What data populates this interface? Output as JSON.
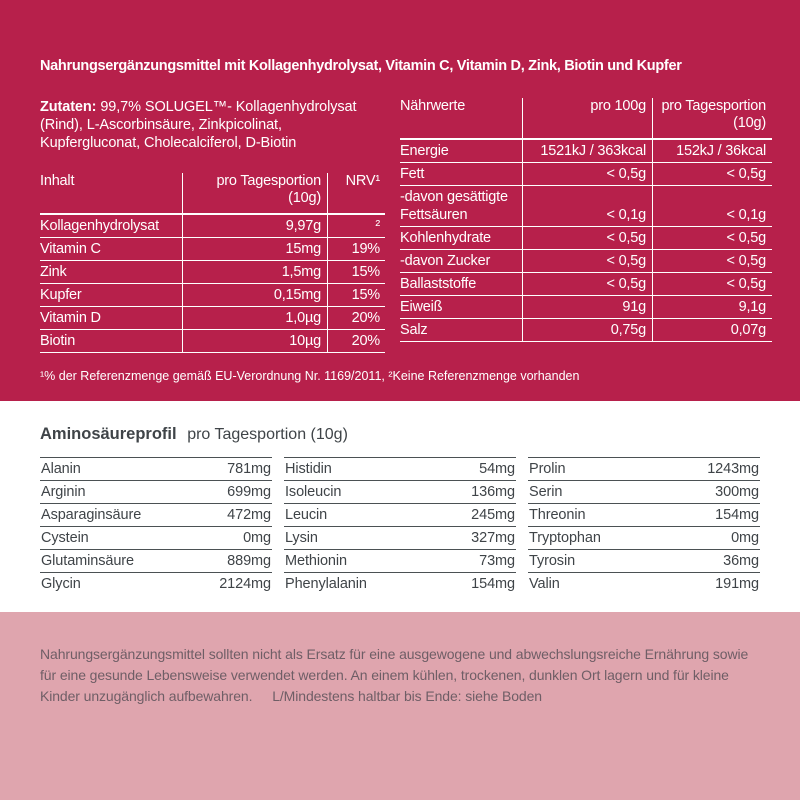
{
  "page": {
    "title": "Nahrungsergänzungsmittel mit Kollagenhydrolysat, Vitamin C, Vitamin D, Zink, Biotin und Kupfer",
    "ingredients_label": "Zutaten:",
    "ingredients_text": "99,7% SOLUGEL™- Kollagenhydro­lysat (Rind), L-Ascorbinsäure, Zinkpicolinat, Kupfergluconat, Cholecalciferol, D-Biotin",
    "content_table": {
      "col_name": "Inhalt",
      "col_portion": "pro Tagesportion\n(10g)",
      "col_nrv": "NRV¹",
      "rows": [
        {
          "name": "Kollagenhydrolysat",
          "amount": "9,97g",
          "nrv": "²"
        },
        {
          "name": "Vitamin C",
          "amount": "15mg",
          "nrv": "19%"
        },
        {
          "name": "Zink",
          "amount": "1,5mg",
          "nrv": "15%"
        },
        {
          "name": "Kupfer",
          "amount": "0,15mg",
          "nrv": "15%"
        },
        {
          "name": "Vitamin D",
          "amount": "1,0µg",
          "nrv": "20%"
        },
        {
          "name": "Biotin",
          "amount": "10µg",
          "nrv": "20%"
        }
      ]
    },
    "nutrition_table": {
      "col_name": "Nährwerte",
      "col_per100": "pro 100g",
      "col_portion": "pro Tagesportion\n(10g)",
      "rows": [
        {
          "name": "Energie",
          "per100": "1521kJ / 363kcal",
          "portion": "152kJ / 36kcal"
        },
        {
          "name": "Fett",
          "per100": "< 0,5g",
          "portion": "< 0,5g"
        },
        {
          "name": "-davon gesättigte Fettsäuren",
          "per100": "< 0,1g",
          "portion": "< 0,1g"
        },
        {
          "name": "Kohlenhydrate",
          "per100": "< 0,5g",
          "portion": "< 0,5g"
        },
        {
          "name": "-davon Zucker",
          "per100": "< 0,5g",
          "portion": "< 0,5g"
        },
        {
          "name": "Ballaststoffe",
          "per100": "< 0,5g",
          "portion": "< 0,5g"
        },
        {
          "name": "Eiweiß",
          "per100": "91g",
          "portion": "9,1g"
        },
        {
          "name": "Salz",
          "per100": "0,75g",
          "portion": "0,07g"
        }
      ]
    },
    "footnote": "¹% der Referenzmenge gemäß EU-Verordnung Nr. 1169/2011, ²Keine Referenzmenge vorhanden",
    "amino": {
      "title": "Aminosäureprofil",
      "subtitle": "pro Tagesportion (10g)",
      "columns": [
        [
          {
            "name": "Alanin",
            "value": "781mg"
          },
          {
            "name": "Arginin",
            "value": "699mg"
          },
          {
            "name": "Asparaginsäure",
            "value": "472mg"
          },
          {
            "name": "Cystein",
            "value": "0mg"
          },
          {
            "name": "Glutaminsäure",
            "value": "889mg"
          },
          {
            "name": "Glycin",
            "value": "2124mg"
          }
        ],
        [
          {
            "name": "Histidin",
            "value": "54mg"
          },
          {
            "name": "Isoleucin",
            "value": "136mg"
          },
          {
            "name": "Leucin",
            "value": "245mg"
          },
          {
            "name": "Lysin",
            "value": "327mg"
          },
          {
            "name": "Methionin",
            "value": "73mg"
          },
          {
            "name": "Phenylalanin",
            "value": "154mg"
          }
        ],
        [
          {
            "name": "Prolin",
            "value": "1243mg"
          },
          {
            "name": "Serin",
            "value": "300mg"
          },
          {
            "name": "Threonin",
            "value": "154mg"
          },
          {
            "name": "Tryptophan",
            "value": "0mg"
          },
          {
            "name": "Tyrosin",
            "value": "36mg"
          },
          {
            "name": "Valin",
            "value": "191mg"
          }
        ]
      ]
    },
    "disclaimer": "Nahrungsergänzungsmittel sollten nicht als Ersatz für eine ausgewogene und abwechslungsreiche Ernährung sowie für eine gesunde Lebensweise verwendet werden. An einem kühlen, trockenen, dunklen Ort lagern und für kleine Kinder unzugänglich aufbewahren.",
    "best_before": "L/Mindestens haltbar bis Ende: siehe Boden",
    "colors": {
      "primary_red": "#b7204b",
      "bottom_pink": "#dfa5ae",
      "light_text": "#ffffff",
      "dark_text": "#3f4448",
      "pink_section_text": "#6f5e66"
    }
  }
}
